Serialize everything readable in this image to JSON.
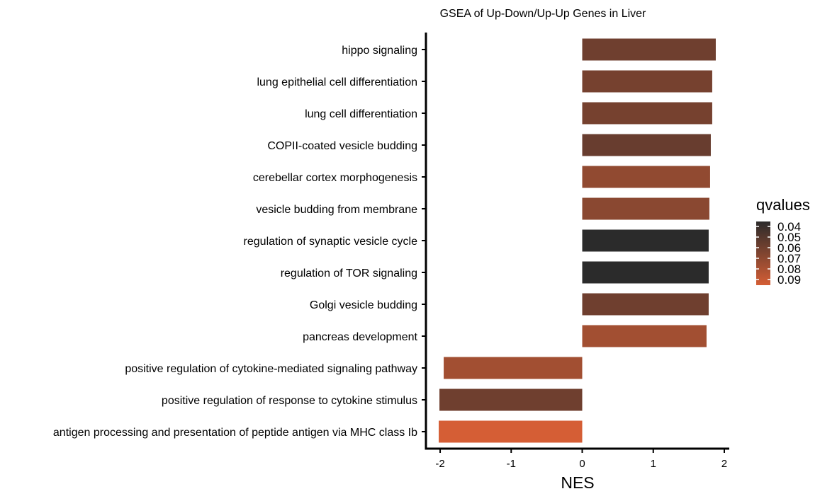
{
  "chart_data": {
    "type": "bar",
    "orientation": "horizontal",
    "title": "GSEA of Up-Down/Up-Up Genes in Liver",
    "xlabel": "NES",
    "ylabel": "",
    "xlim": [
      -2.2,
      2.07
    ],
    "xticks": [
      -2,
      -1,
      0,
      1,
      2
    ],
    "xtick_labels": [
      "-2",
      "-1",
      "0",
      "1",
      "2"
    ],
    "grid": false,
    "categories": [
      "hippo signaling",
      "lung epithelial cell differentiation",
      "lung cell differentiation",
      "COPII-coated vesicle budding",
      "cerebellar cortex morphogenesis",
      "vesicle budding from membrane",
      "regulation of synaptic vesicle cycle",
      "regulation of TOR signaling",
      "Golgi vesicle budding",
      "pancreas development",
      "positive regulation of cytokine-mediated signaling pathway",
      "positive regulation of response to cytokine stimulus",
      "antigen processing and presentation of peptide antigen via MHC class Ib"
    ],
    "values": [
      1.88,
      1.83,
      1.83,
      1.81,
      1.8,
      1.79,
      1.78,
      1.78,
      1.78,
      1.75,
      -1.95,
      -2.01,
      -2.02
    ],
    "qvalues": [
      0.06,
      0.062,
      0.062,
      0.058,
      0.07,
      0.068,
      0.04,
      0.04,
      0.06,
      0.075,
      0.075,
      0.06,
      0.09
    ],
    "legend": {
      "title": "qvalues",
      "position": "right",
      "labels": [
        "0.04",
        "0.05",
        "0.06",
        "0.07",
        "0.08",
        "0.09"
      ],
      "values": [
        0.04,
        0.05,
        0.06,
        0.07,
        0.08,
        0.09
      ],
      "color_low": "#2b2b2b",
      "color_high": "#d55e35"
    }
  }
}
